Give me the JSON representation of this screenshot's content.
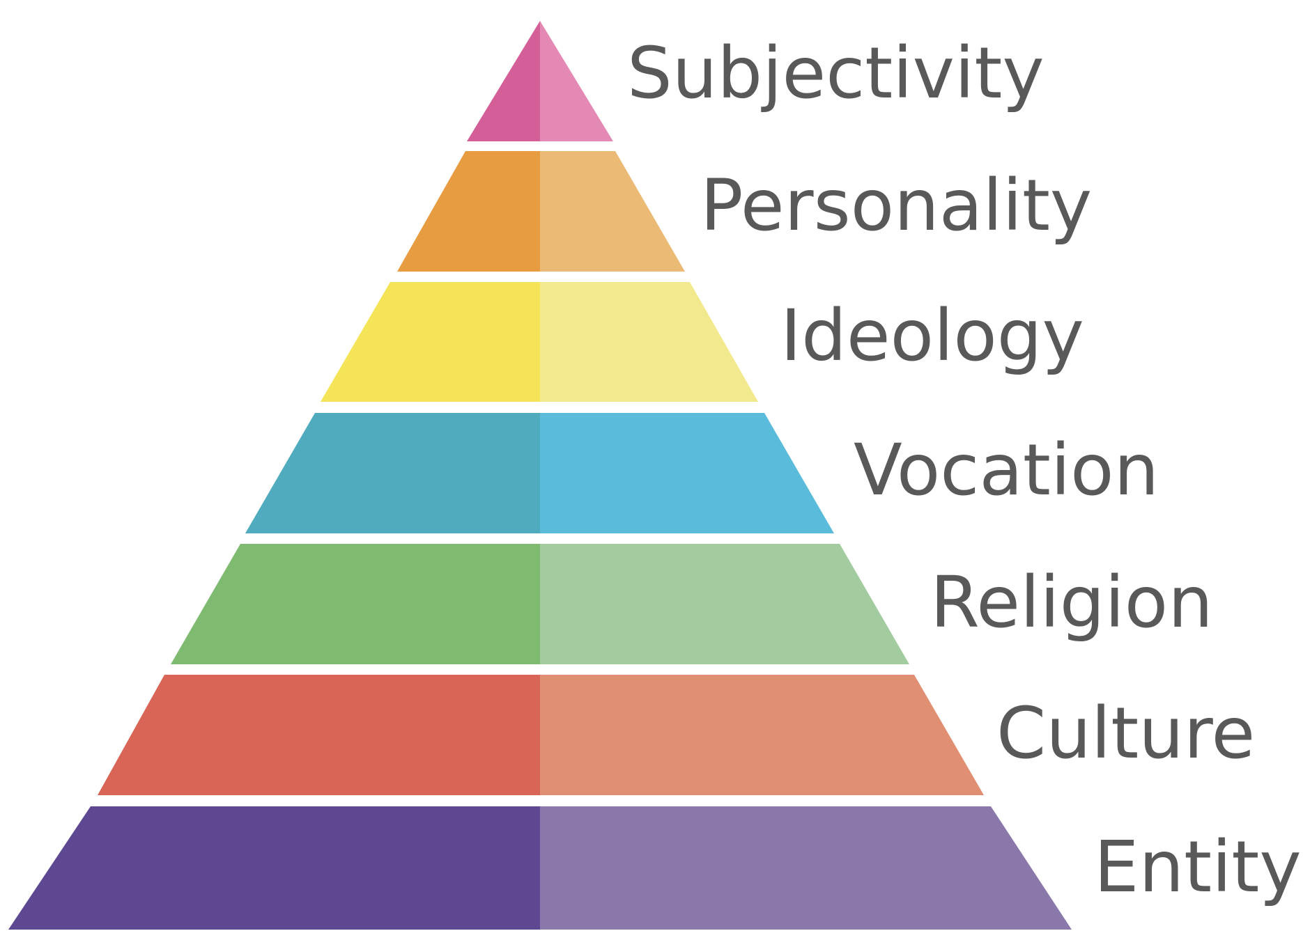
{
  "diagram": {
    "type": "pyramid",
    "tiers": [
      {
        "label": "Subjectivity",
        "left_color": "#D45E97",
        "right_color": "#E389B4"
      },
      {
        "label": "Personality",
        "left_color": "#E89C42",
        "right_color": "#EBBA75"
      },
      {
        "label": "Ideology",
        "left_color": "#F5E458",
        "right_color": "#F2E98E"
      },
      {
        "label": "Vocation",
        "left_color": "#50ABBE",
        "right_color": "#5BBBDA"
      },
      {
        "label": "Religion",
        "left_color": "#7EBB70",
        "right_color": "#A2CBA0"
      },
      {
        "label": "Culture",
        "left_color": "#D96557",
        "right_color": "#E08F72"
      },
      {
        "label": "Entity",
        "left_color": "#5F4892",
        "right_color": "#8A78AB"
      }
    ],
    "label_color": "#595959"
  }
}
